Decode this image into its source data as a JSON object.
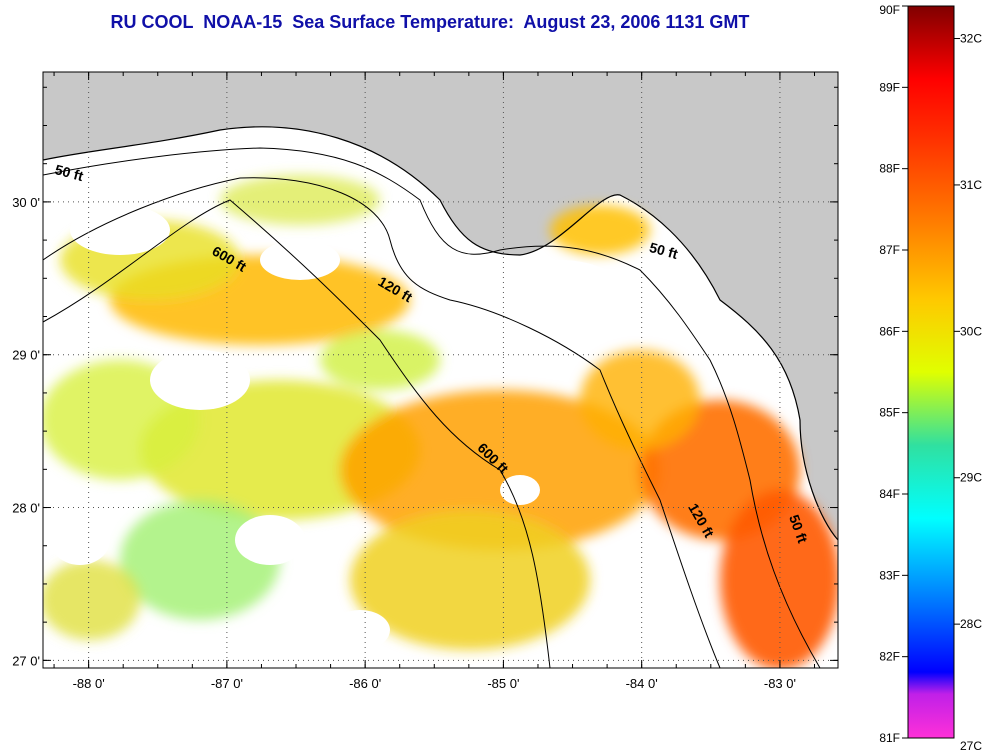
{
  "title": "RU COOL  NOAA-15  Sea Surface Temperature:  August 23, 2006 1131 GMT",
  "map": {
    "lon_range": [
      -88.33,
      -82.58
    ],
    "lat_range": [
      26.95,
      30.85
    ],
    "lon_ticks": [
      {
        "value": -88,
        "label": "-88 0'"
      },
      {
        "value": -87,
        "label": "-87 0'"
      },
      {
        "value": -86,
        "label": "-86 0'"
      },
      {
        "value": -85,
        "label": "-85 0'"
      },
      {
        "value": -84,
        "label": "-84 0'"
      },
      {
        "value": -83,
        "label": "-83 0'"
      }
    ],
    "lat_ticks": [
      {
        "value": 27,
        "label": "27 0'"
      },
      {
        "value": 28,
        "label": "28 0'"
      },
      {
        "value": 29,
        "label": "29 0'"
      },
      {
        "value": 30,
        "label": "30 0'"
      }
    ],
    "contour_labels": [
      {
        "text": "50 ft",
        "lon": -88.15,
        "lat": 30.16
      },
      {
        "text": "600 ft",
        "lon": -87.0,
        "lat": 29.6
      },
      {
        "text": "120 ft",
        "lon": -85.8,
        "lat": 29.4
      },
      {
        "text": "50 ft",
        "lon": -83.85,
        "lat": 29.65
      },
      {
        "text": "600 ft",
        "lon": -85.1,
        "lat": 28.3
      },
      {
        "text": "120 ft",
        "lon": -83.6,
        "lat": 27.9
      },
      {
        "text": "50 ft",
        "lon": -82.9,
        "lat": 27.85
      }
    ],
    "land_color": "#c8c8c8",
    "cloud_color": "#ffffff"
  },
  "colorbar": {
    "fahrenheit": [
      {
        "value": 81,
        "label": "81F"
      },
      {
        "value": 82,
        "label": "82F"
      },
      {
        "value": 83,
        "label": "83F"
      },
      {
        "value": 84,
        "label": "84F"
      },
      {
        "value": 85,
        "label": "85F"
      },
      {
        "value": 86,
        "label": "86F"
      },
      {
        "value": 87,
        "label": "87F"
      },
      {
        "value": 88,
        "label": "88F"
      },
      {
        "value": 89,
        "label": "89F"
      },
      {
        "value": 90,
        "label": "90F"
      }
    ],
    "celsius": [
      {
        "value": 27,
        "label": "27C"
      },
      {
        "value": 28,
        "label": "28C"
      },
      {
        "value": 29,
        "label": "29C"
      },
      {
        "value": 30,
        "label": "30C"
      },
      {
        "value": 31,
        "label": "31C"
      },
      {
        "value": 32,
        "label": "32C"
      }
    ],
    "stops": [
      "#ff30d8",
      "#8000ff",
      "#0000ff",
      "#0090ff",
      "#00ffff",
      "#40e080",
      "#e0ff00",
      "#ffb000",
      "#ff5000",
      "#ff0000",
      "#800000"
    ]
  }
}
